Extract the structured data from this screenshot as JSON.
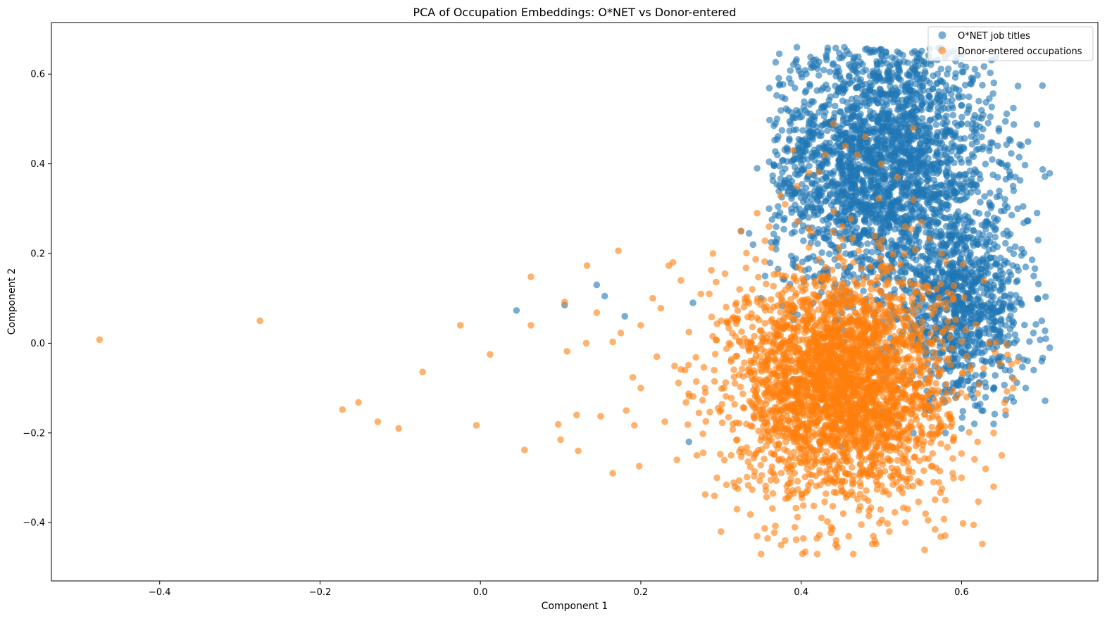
{
  "chart_data": {
    "type": "scatter",
    "title": "PCA of Occupation Embeddings: O*NET vs Donor-entered",
    "xlabel": "Component 1",
    "ylabel": "Component 2",
    "xlim": [
      -0.535,
      0.77
    ],
    "ylim": [
      -0.53,
      0.715
    ],
    "xticks": [
      -0.4,
      -0.2,
      0.0,
      0.2,
      0.4,
      0.6
    ],
    "xtick_labels": [
      "−0.4",
      "−0.2",
      "0.0",
      "0.2",
      "0.4",
      "0.6"
    ],
    "yticks": [
      -0.4,
      -0.2,
      0.0,
      0.2,
      0.4,
      0.6
    ],
    "ytick_labels": [
      "−0.4",
      "−0.2",
      "0.0",
      "0.2",
      "0.4",
      "0.6"
    ],
    "grid": false,
    "legend_position": "upper right",
    "series": [
      {
        "name": "O*NET job titles",
        "color": "#1f77b4",
        "alpha": 0.6,
        "marker": "circle",
        "cluster": {
          "center": [
            0.5,
            0.4
          ],
          "spread": [
            0.07,
            0.15
          ],
          "extent_x": [
            0.36,
            0.71
          ],
          "extent_y": [
            -0.18,
            0.66
          ]
        },
        "points": [
          [
            0.045,
            0.073
          ],
          [
            0.105,
            0.085
          ],
          [
            0.145,
            0.13
          ],
          [
            0.155,
            0.105
          ],
          [
            0.18,
            0.06
          ],
          [
            0.26,
            -0.22
          ],
          [
            0.265,
            0.09
          ],
          [
            0.335,
            0.245
          ],
          [
            0.345,
            0.39
          ],
          [
            0.355,
            0.15
          ],
          [
            0.37,
            0.5
          ],
          [
            0.38,
            0.545
          ],
          [
            0.385,
            0.59
          ],
          [
            0.4,
            0.6
          ],
          [
            0.42,
            0.62
          ],
          [
            0.46,
            0.645
          ],
          [
            0.48,
            0.655
          ],
          [
            0.5,
            0.655
          ],
          [
            0.52,
            0.65
          ],
          [
            0.55,
            0.63
          ],
          [
            0.57,
            0.6
          ],
          [
            0.59,
            0.57
          ],
          [
            0.6,
            0.53
          ],
          [
            0.615,
            0.5
          ],
          [
            0.625,
            0.46
          ],
          [
            0.645,
            0.44
          ],
          [
            0.65,
            0.4
          ],
          [
            0.66,
            0.37
          ],
          [
            0.665,
            0.34
          ],
          [
            0.67,
            0.3
          ],
          [
            0.675,
            0.21
          ],
          [
            0.68,
            0.17
          ],
          [
            0.69,
            0.15
          ],
          [
            0.695,
            0.1
          ],
          [
            0.7,
            0.05
          ],
          [
            0.705,
            0.01
          ],
          [
            0.71,
            -0.01
          ],
          [
            0.7,
            -0.04
          ],
          [
            0.69,
            -0.06
          ],
          [
            0.68,
            -0.1
          ],
          [
            0.665,
            -0.13
          ],
          [
            0.655,
            -0.16
          ],
          [
            0.64,
            -0.18
          ],
          [
            0.62,
            -0.14
          ],
          [
            0.6,
            -0.19
          ],
          [
            0.58,
            -0.2
          ],
          [
            0.56,
            -0.15
          ],
          [
            0.54,
            -0.2
          ],
          [
            0.52,
            -0.18
          ],
          [
            0.48,
            -0.22
          ],
          [
            0.45,
            -0.23
          ],
          [
            0.42,
            -0.14
          ],
          [
            0.39,
            -0.08
          ],
          [
            0.37,
            0.02
          ],
          [
            0.35,
            0.1
          ],
          [
            0.34,
            0.22
          ],
          [
            0.36,
            0.3
          ],
          [
            0.38,
            0.36
          ],
          [
            0.395,
            0.43
          ],
          [
            0.41,
            0.47
          ],
          [
            0.43,
            0.53
          ],
          [
            0.45,
            0.57
          ],
          [
            0.47,
            0.59
          ],
          [
            0.49,
            0.6
          ],
          [
            0.51,
            0.59
          ],
          [
            0.53,
            0.56
          ],
          [
            0.55,
            0.52
          ],
          [
            0.57,
            0.47
          ],
          [
            0.58,
            0.42
          ],
          [
            0.59,
            0.37
          ],
          [
            0.6,
            0.32
          ],
          [
            0.61,
            0.27
          ],
          [
            0.62,
            0.22
          ],
          [
            0.63,
            0.18
          ],
          [
            0.64,
            0.13
          ],
          [
            0.65,
            0.08
          ],
          [
            0.655,
            0.04
          ],
          [
            0.66,
            0.0
          ],
          [
            0.65,
            -0.05
          ],
          [
            0.64,
            -0.1
          ],
          [
            0.625,
            -0.15
          ],
          [
            0.325,
            0.25
          ],
          [
            0.41,
            0.49
          ],
          [
            0.605,
            0.35
          ],
          [
            0.645,
            0.37
          ]
        ]
      },
      {
        "name": "Donor-entered occupations",
        "color": "#ff7f0e",
        "alpha": 0.6,
        "marker": "circle",
        "cluster": {
          "center": [
            0.45,
            -0.09
          ],
          "spread": [
            0.065,
            0.125
          ],
          "extent_x": [
            0.22,
            0.68
          ],
          "extent_y": [
            -0.475,
            0.49
          ]
        },
        "points": [
          [
            -0.475,
            0.008
          ],
          [
            -0.275,
            0.05
          ],
          [
            -0.172,
            -0.148
          ],
          [
            -0.152,
            -0.132
          ],
          [
            -0.128,
            -0.175
          ],
          [
            -0.102,
            -0.19
          ],
          [
            -0.072,
            -0.064
          ],
          [
            -0.025,
            0.04
          ],
          [
            -0.005,
            -0.183
          ],
          [
            0.012,
            -0.025
          ],
          [
            0.055,
            -0.238
          ],
          [
            0.063,
            0.04
          ],
          [
            0.063,
            0.148
          ],
          [
            0.097,
            -0.181
          ],
          [
            0.1,
            -0.215
          ],
          [
            0.105,
            0.092
          ],
          [
            0.108,
            -0.018
          ],
          [
            0.12,
            -0.16
          ],
          [
            0.122,
            -0.24
          ],
          [
            0.132,
            0.0
          ],
          [
            0.133,
            0.173
          ],
          [
            0.145,
            0.068
          ],
          [
            0.15,
            -0.163
          ],
          [
            0.165,
            -0.29
          ],
          [
            0.165,
            0.003
          ],
          [
            0.172,
            0.206
          ],
          [
            0.175,
            0.023
          ],
          [
            0.182,
            -0.15
          ],
          [
            0.19,
            -0.076
          ],
          [
            0.192,
            -0.183
          ],
          [
            0.198,
            -0.274
          ],
          [
            0.2,
            0.04
          ],
          [
            0.2,
            -0.1
          ],
          [
            0.215,
            0.1
          ],
          [
            0.22,
            -0.03
          ],
          [
            0.225,
            0.078
          ],
          [
            0.23,
            -0.175
          ],
          [
            0.235,
            0.173
          ],
          [
            0.245,
            -0.26
          ],
          [
            0.25,
            0.14
          ],
          [
            0.255,
            -0.06
          ],
          [
            0.26,
            0.025
          ],
          [
            0.27,
            -0.25
          ],
          [
            0.275,
            0.11
          ],
          [
            0.28,
            -0.1
          ],
          [
            0.29,
            0.2
          ],
          [
            0.295,
            -0.3
          ],
          [
            0.3,
            -0.42
          ],
          [
            0.305,
            0.155
          ],
          [
            0.31,
            0.0
          ],
          [
            0.32,
            -0.37
          ],
          [
            0.325,
            0.25
          ],
          [
            0.33,
            0.1
          ],
          [
            0.345,
            -0.43
          ],
          [
            0.345,
            0.29
          ],
          [
            0.35,
            -0.47
          ],
          [
            0.36,
            0.26
          ],
          [
            0.375,
            -0.45
          ],
          [
            0.38,
            0.31
          ],
          [
            0.39,
            0.43
          ],
          [
            0.395,
            0.35
          ],
          [
            0.405,
            -0.465
          ],
          [
            0.41,
            0.38
          ],
          [
            0.42,
            -0.47
          ],
          [
            0.43,
            0.42
          ],
          [
            0.44,
            0.49
          ],
          [
            0.445,
            -0.455
          ],
          [
            0.455,
            0.44
          ],
          [
            0.465,
            -0.47
          ],
          [
            0.47,
            0.42
          ],
          [
            0.48,
            0.46
          ],
          [
            0.49,
            -0.43
          ],
          [
            0.5,
            0.4
          ],
          [
            0.51,
            -0.42
          ],
          [
            0.52,
            0.37
          ],
          [
            0.53,
            -0.4
          ],
          [
            0.54,
            0.32
          ],
          [
            0.55,
            0.27
          ],
          [
            0.555,
            -0.38
          ],
          [
            0.567,
            -0.415
          ],
          [
            0.575,
            0.2
          ],
          [
            0.58,
            -0.35
          ],
          [
            0.59,
            0.1
          ],
          [
            0.6,
            -0.3
          ],
          [
            0.605,
            0.03
          ],
          [
            0.615,
            -0.405
          ],
          [
            0.62,
            -0.22
          ],
          [
            0.63,
            -0.28
          ],
          [
            0.64,
            -0.32
          ],
          [
            0.64,
            -0.2
          ],
          [
            0.65,
            -0.25
          ],
          [
            0.655,
            -0.15
          ],
          [
            0.665,
            -0.08
          ],
          [
            0.67,
            -0.04
          ],
          [
            0.54,
            0.48
          ]
        ]
      }
    ]
  }
}
